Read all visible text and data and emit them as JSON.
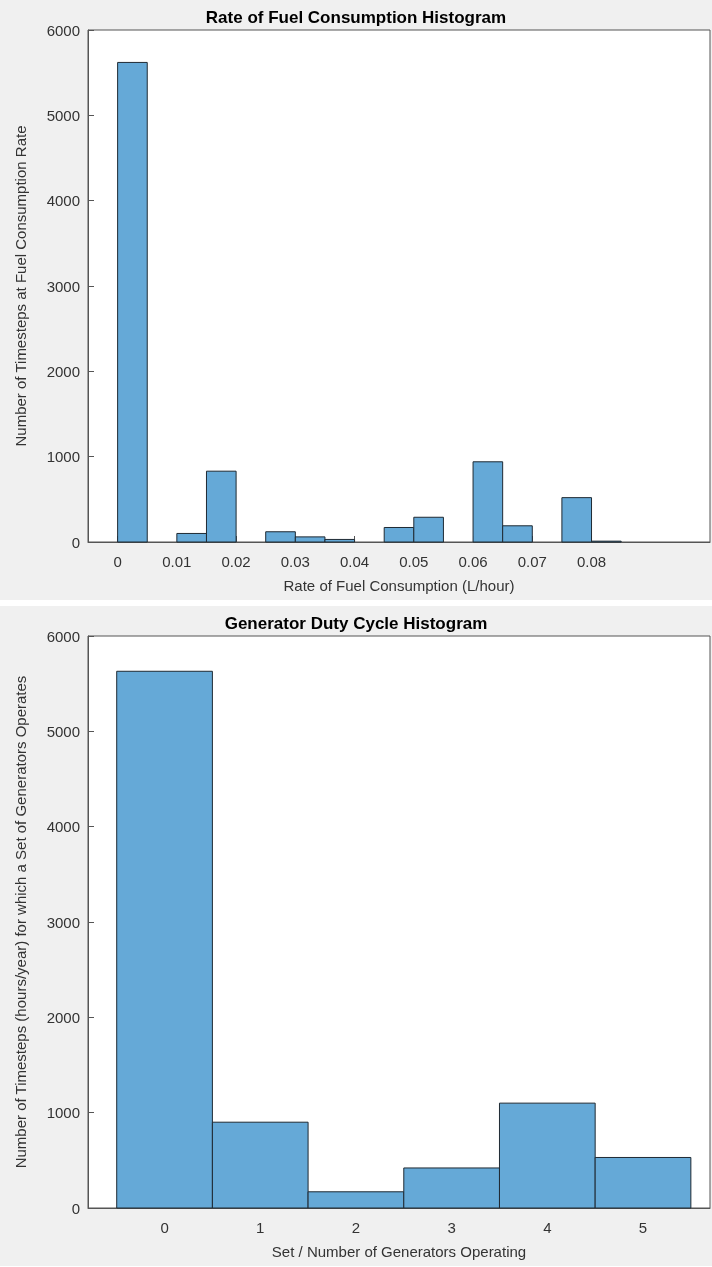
{
  "chart_data": [
    {
      "type": "histogram",
      "title": "Rate of Fuel Consumption Histogram",
      "xlabel": "Rate of Fuel Consumption (L/hour)",
      "ylabel": "Number of Timesteps at Fuel Consumption Rate",
      "bins": [
        0,
        0.005,
        0.01,
        0.015,
        0.02,
        0.025,
        0.03,
        0.035,
        0.04,
        0.045,
        0.05,
        0.055,
        0.06,
        0.065,
        0.07,
        0.075,
        0.08,
        0.085
      ],
      "values": [
        5620,
        0,
        100,
        830,
        0,
        120,
        60,
        30,
        0,
        170,
        290,
        0,
        940,
        190,
        0,
        520,
        10
      ],
      "color": "#65a9d7",
      "xlim": [
        -0.005,
        0.1
      ],
      "xticks": [
        0,
        0.01,
        0.02,
        0.03,
        0.04,
        0.05,
        0.06,
        0.07,
        0.08
      ],
      "ylim": [
        0,
        6000
      ],
      "yticks": [
        0,
        1000,
        2000,
        3000,
        4000,
        5000,
        6000
      ]
    },
    {
      "type": "histogram",
      "title": "Generator Duty Cycle Histogram",
      "xlabel": "Set / Number of Generators Operating",
      "ylabel": "Number of Timesteps (hours/year) for which a Set of Generators Operates",
      "bins": [
        -0.5,
        0.5,
        1.5,
        2.5,
        3.5,
        4.5,
        5.5
      ],
      "values": [
        5630,
        900,
        170,
        420,
        1100,
        530
      ],
      "color": "#65a9d7",
      "xlim": [
        -0.8,
        5.7
      ],
      "xticks": [
        0,
        1,
        2,
        3,
        4,
        5
      ],
      "ylim": [
        0,
        6000
      ],
      "yticks": [
        0,
        1000,
        2000,
        3000,
        4000,
        5000,
        6000
      ]
    }
  ]
}
